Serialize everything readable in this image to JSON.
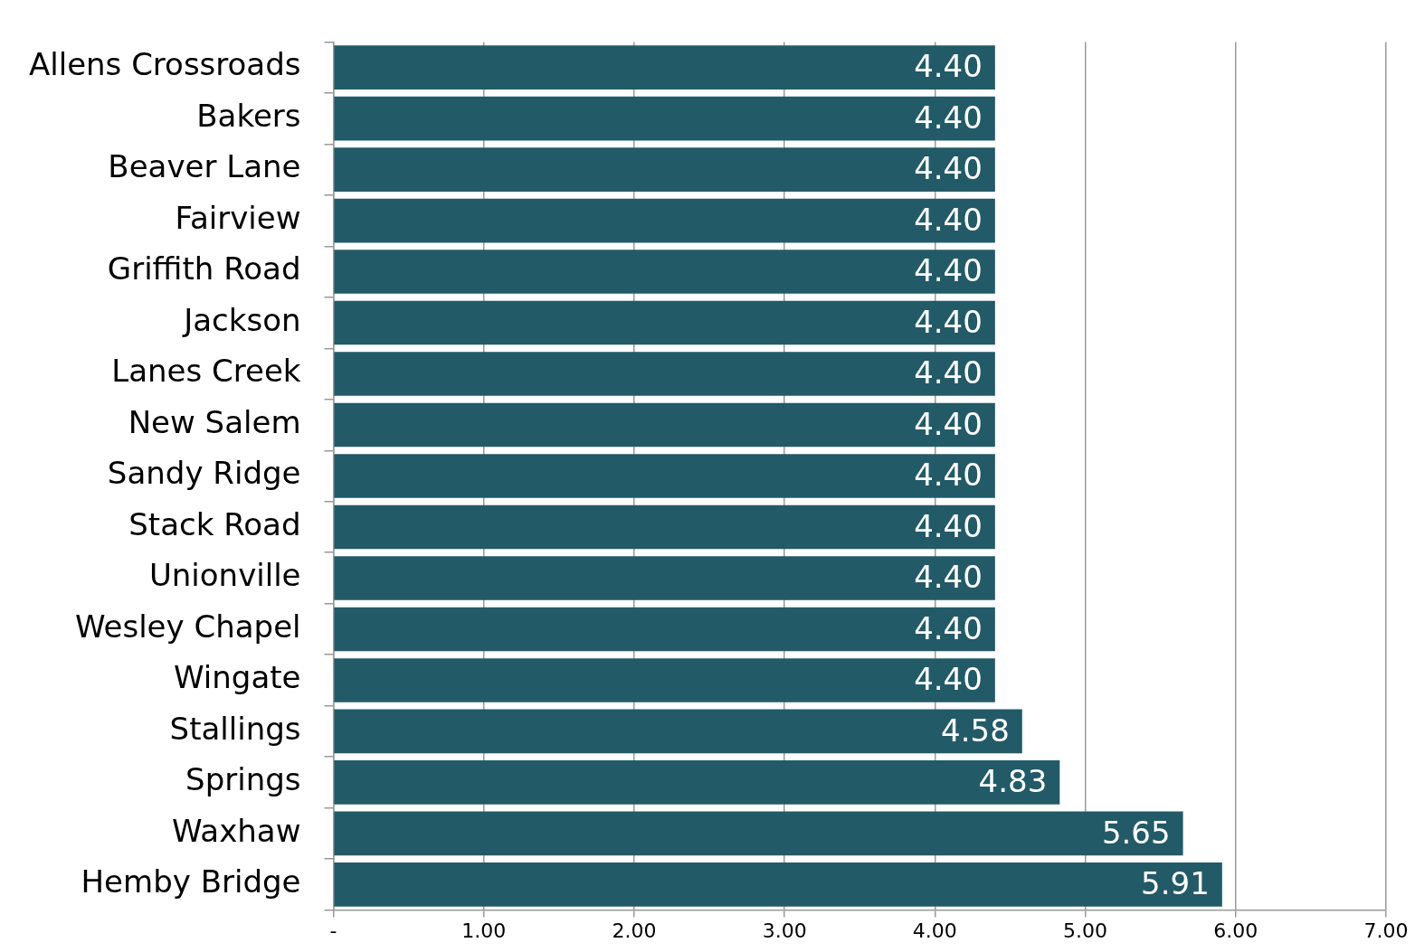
{
  "chart_data": {
    "type": "bar",
    "orientation": "horizontal",
    "categories": [
      "Allens Crossroads",
      "Bakers",
      "Beaver Lane",
      "Fairview",
      "Griffith Road",
      "Jackson",
      "Lanes Creek",
      "New Salem",
      "Sandy Ridge",
      "Stack Road",
      "Unionville",
      "Wesley Chapel",
      "Wingate",
      "Stallings",
      "Springs",
      "Waxhaw",
      "Hemby Bridge"
    ],
    "values": [
      4.4,
      4.4,
      4.4,
      4.4,
      4.4,
      4.4,
      4.4,
      4.4,
      4.4,
      4.4,
      4.4,
      4.4,
      4.4,
      4.58,
      4.83,
      5.65,
      5.91
    ],
    "value_labels": [
      "4.40",
      "4.40",
      "4.40",
      "4.40",
      "4.40",
      "4.40",
      "4.40",
      "4.40",
      "4.40",
      "4.40",
      "4.40",
      "4.40",
      "4.40",
      "4.58",
      "4.83",
      "5.65",
      "5.91"
    ],
    "color": "#235a68",
    "xlim": [
      0,
      7
    ],
    "xticks": [
      {
        "value": 0,
        "label": "-"
      },
      {
        "value": 1,
        "label": "1.00"
      },
      {
        "value": 2,
        "label": "2.00"
      },
      {
        "value": 3,
        "label": "3.00"
      },
      {
        "value": 4,
        "label": "4.00"
      },
      {
        "value": 5,
        "label": "5.00"
      },
      {
        "value": 6,
        "label": "6.00"
      },
      {
        "value": 7,
        "label": "7.00"
      }
    ],
    "grid": "x",
    "legend": false
  }
}
